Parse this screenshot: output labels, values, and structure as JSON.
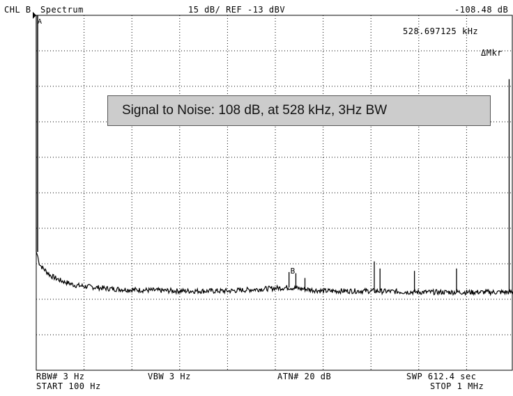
{
  "header": {
    "channel": "CHL B",
    "mode": "Spectrum",
    "scale": "15 dB/ REF -13 dBV",
    "marker_value": "-108.48 dB",
    "marker_freq": "528.697125 kHz",
    "marker_mode": "ΔMkr"
  },
  "annotation": "Signal to Noise: 108 dB, at 528 kHz, 3Hz BW",
  "footer": {
    "rbw": "RBW# 3 Hz",
    "vbw": "VBW 3 Hz",
    "atn": "ATN# 20 dB",
    "swp": "SWP 612.4 sec",
    "start": "START 100 Hz",
    "stop": "STOP 1 MHz"
  },
  "marker_labels": {
    "a": "A",
    "b": "B"
  },
  "chart_data": {
    "type": "line",
    "x_unit": "kHz",
    "y_unit": "dBV",
    "xlim": [
      0.1,
      1000
    ],
    "ylim": [
      -163,
      -13
    ],
    "y_divisions": 10,
    "x_divisions": 10,
    "grid": true,
    "series": [
      {
        "x": [
          0.1,
          2,
          5,
          10,
          20,
          30,
          50,
          80,
          100,
          150,
          200,
          300,
          400,
          528.7,
          600,
          700,
          800,
          900,
          1000
        ],
        "y": [
          -13,
          -113,
          -117,
          -119,
          -121,
          -123,
          -125,
          -127,
          -127.5,
          -128.5,
          -129,
          -129.5,
          -129.5,
          -128,
          -129.5,
          -129.5,
          -130,
          -130,
          -130
        ]
      }
    ],
    "spurs": [
      {
        "x": 528.7,
        "y": -121.5
      },
      {
        "x": 543,
        "y": -122
      },
      {
        "x": 562,
        "y": -124
      },
      {
        "x": 707,
        "y": -117
      },
      {
        "x": 719,
        "y": -120
      },
      {
        "x": 791,
        "y": -121
      },
      {
        "x": 879,
        "y": -120
      },
      {
        "x": 989,
        "y": -40
      }
    ],
    "markers": [
      {
        "label": "A",
        "x": 0.1,
        "y": -13
      },
      {
        "label": "B",
        "x": 528.7,
        "y": -121.5
      }
    ]
  }
}
